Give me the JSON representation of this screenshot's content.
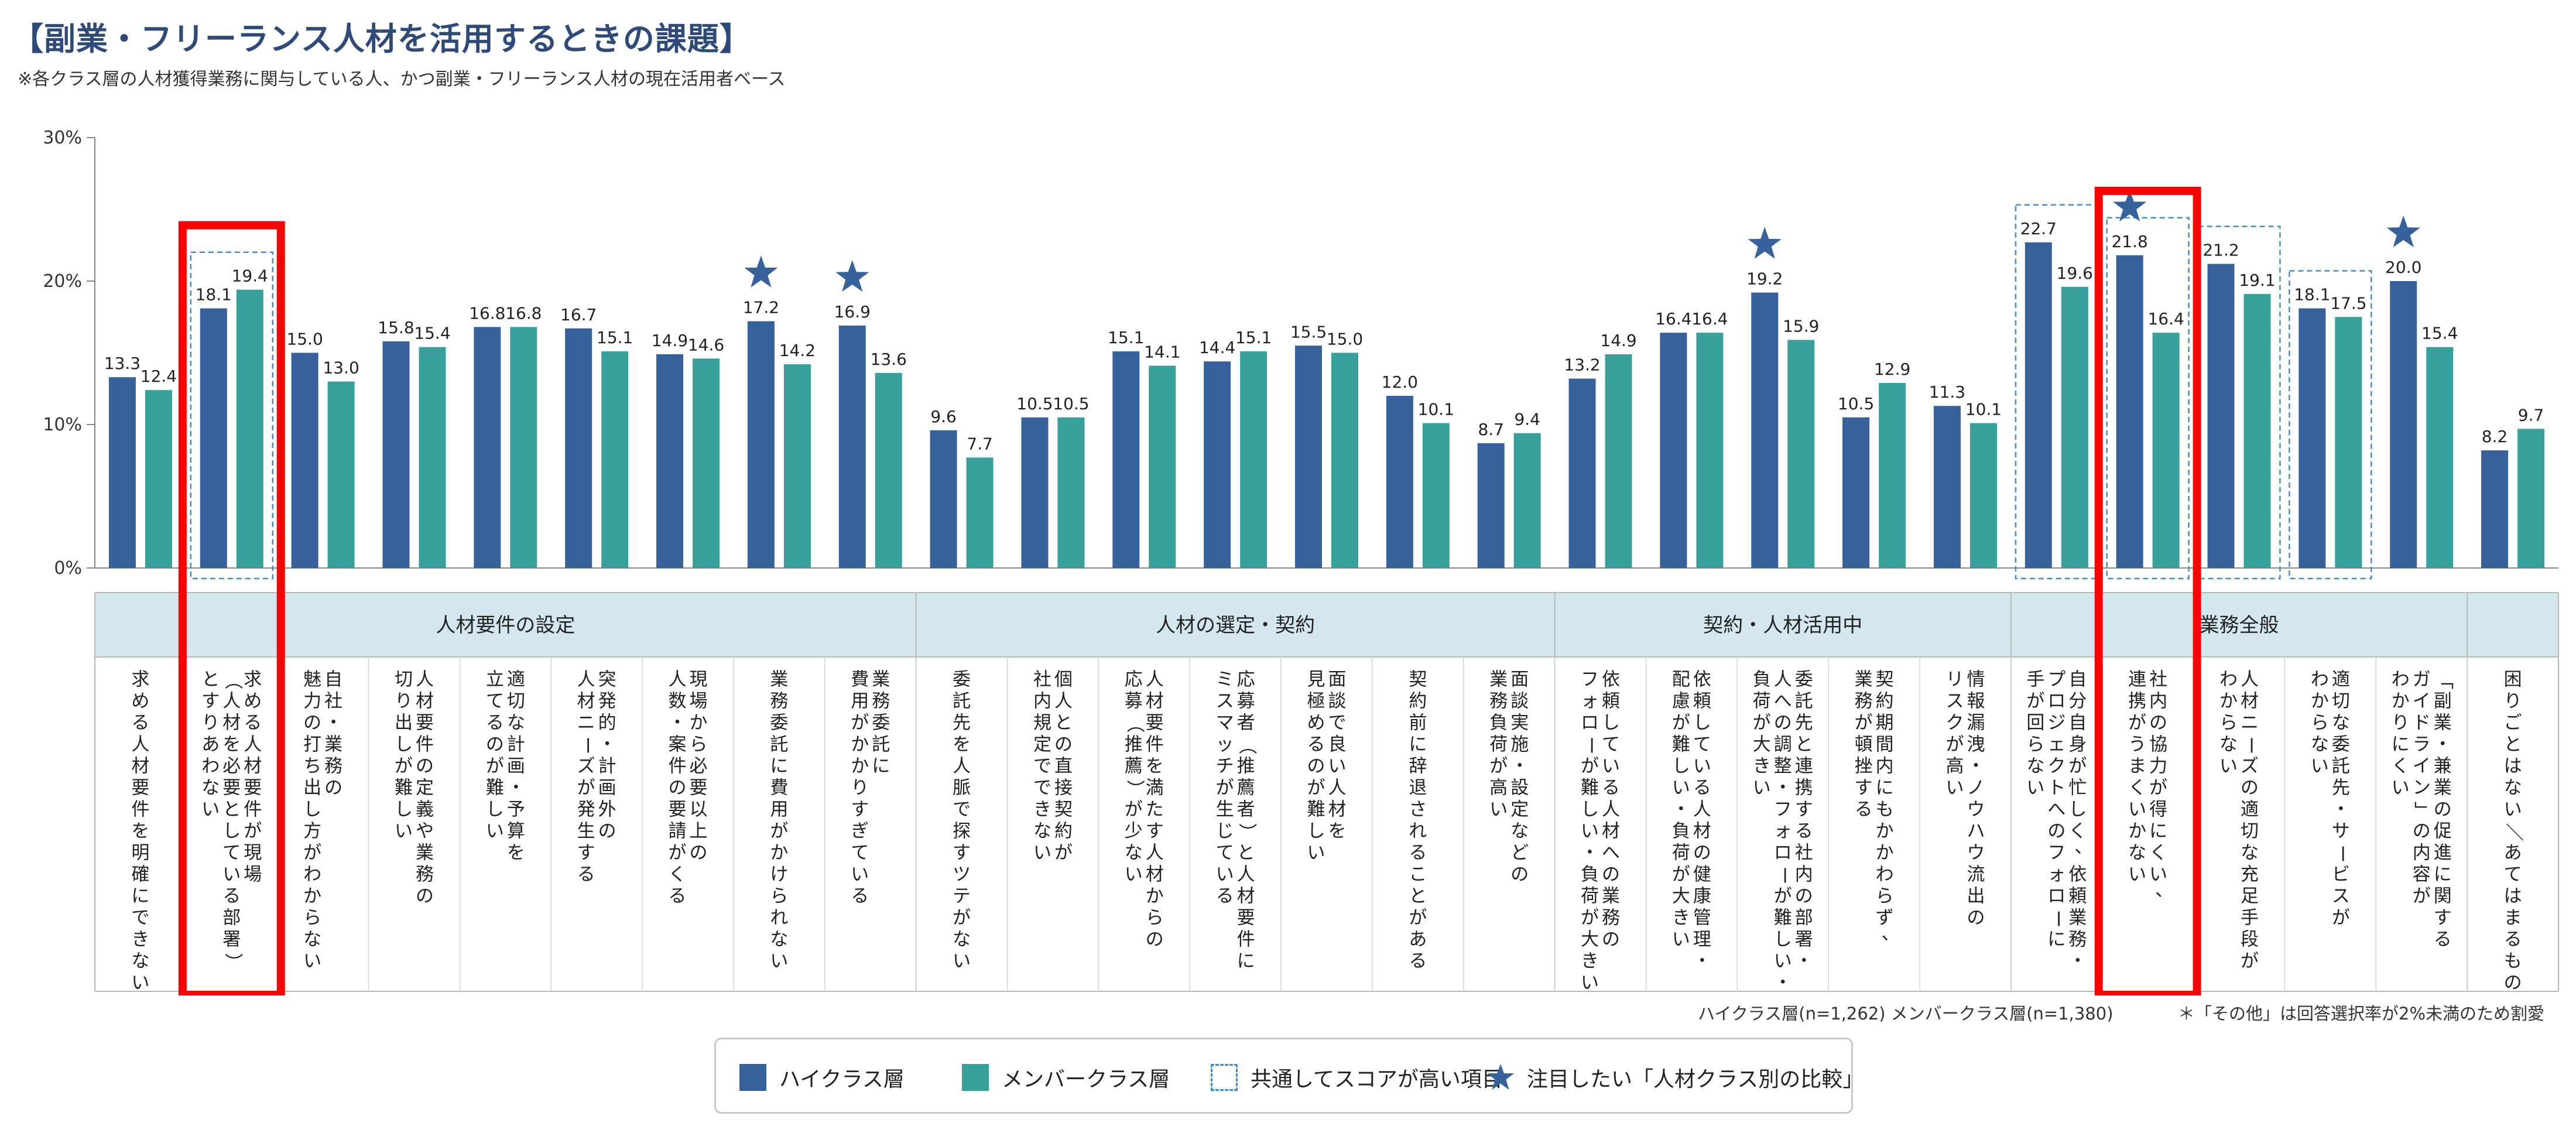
{
  "title": "【副業・フリーランス人材を活用するときの課題】",
  "subtitle": "※各クラス層の人材獲得業務に関与している人、かつ副業・フリーランス人材の現在活用者ベース",
  "colors": {
    "high": "#36619a",
    "member": "#37a09b",
    "group_bg": "#d4e6ee",
    "dashed": "#3f8fc4",
    "highlight_box": "#ff0000"
  },
  "chart_data": {
    "type": "bar",
    "ylim": [
      0,
      30
    ],
    "yticks": [
      "0%",
      "10%",
      "20%",
      "30%"
    ],
    "series": [
      {
        "name": "ハイクラス層",
        "values": [
          13.3,
          18.1,
          15.0,
          15.8,
          16.8,
          16.7,
          14.9,
          17.2,
          16.9,
          9.6,
          10.5,
          15.1,
          14.4,
          15.5,
          12.0,
          8.7,
          13.2,
          16.4,
          19.2,
          10.5,
          11.3,
          22.7,
          21.8,
          21.2,
          18.1,
          20.0,
          8.2
        ]
      },
      {
        "name": "メンバークラス層",
        "values": [
          12.4,
          19.4,
          13.0,
          15.4,
          16.8,
          15.1,
          14.6,
          14.2,
          13.6,
          7.7,
          10.5,
          14.1,
          15.1,
          15.0,
          10.1,
          9.4,
          14.9,
          16.4,
          15.9,
          12.9,
          10.1,
          19.6,
          16.4,
          19.1,
          17.5,
          15.4,
          9.7
        ]
      }
    ],
    "categories": [
      {
        "lines": [
          "求める人材要件を明確にできない"
        ]
      },
      {
        "lines": [
          "求める人材要件が現場",
          "（人材を必要としている部署）",
          "とすりあわない"
        ]
      },
      {
        "lines": [
          "自社・業務の",
          "魅力の打ち出し方がわからない"
        ]
      },
      {
        "lines": [
          "人材要件の定義や業務の",
          "切り出しが難しい"
        ]
      },
      {
        "lines": [
          "適切な計画・予算を",
          "立てるのが難しい"
        ]
      },
      {
        "lines": [
          "突発的・計画外の",
          "人材ニーズが発生する"
        ]
      },
      {
        "lines": [
          "現場から必要以上の",
          "人数・案件の要請がくる"
        ]
      },
      {
        "lines": [
          "業務委託に費用がかけられない"
        ]
      },
      {
        "lines": [
          "業務委託に",
          "費用がかかりすぎている"
        ]
      },
      {
        "lines": [
          "委託先を人脈で探すツテがない"
        ]
      },
      {
        "lines": [
          "個人との直接契約が",
          "社内規定でできない"
        ]
      },
      {
        "lines": [
          "人材要件を満たす人材からの",
          "応募（推薦）が少ない"
        ]
      },
      {
        "lines": [
          "応募者（推薦者）と人材要件に",
          "ミスマッチが生じている"
        ]
      },
      {
        "lines": [
          "面談で良い人材を",
          "見極めるのが難しい"
        ]
      },
      {
        "lines": [
          "契約前に辞退されることがある"
        ]
      },
      {
        "lines": [
          "面談実施・設定などの",
          "業務負荷が高い"
        ]
      },
      {
        "lines": [
          "依頼している人材への業務の",
          "フォローが難しい・負荷が大きい"
        ]
      },
      {
        "lines": [
          "依頼している人材の健康管理・",
          "配慮が難しい・負荷が大きい"
        ]
      },
      {
        "lines": [
          "委託先と連携する社内の部署・",
          "人への調整・フォローが難しい・",
          "負荷が大きい"
        ]
      },
      {
        "lines": [
          "契約期間内にもかかわらず、",
          "業務が頓挫する"
        ]
      },
      {
        "lines": [
          "情報漏洩・ノウハウ流出の",
          "リスクが高い"
        ]
      },
      {
        "lines": [
          "自分自身が忙しく、依頼業務・",
          "プロジェクトへのフォローに",
          "手が回らない"
        ]
      },
      {
        "lines": [
          "社内の協力が得にくい、",
          "連携がうまくいかない"
        ]
      },
      {
        "lines": [
          "人材ニーズの適切な充足手段が",
          "わからない"
        ]
      },
      {
        "lines": [
          "適切な委託先・サービスが",
          "わからない"
        ]
      },
      {
        "lines": [
          "「副業・兼業の促進に関する",
          "ガイドライン」の内容が",
          "わかりにくい"
        ]
      },
      {
        "lines": [
          "困りごとはない／あてはまるものはない"
        ]
      }
    ],
    "groups": [
      {
        "label": "人材要件の設定",
        "start": 0,
        "end": 8
      },
      {
        "label": "人材の選定・契約",
        "start": 9,
        "end": 15
      },
      {
        "label": "契約・人材活用中",
        "start": 16,
        "end": 20
      },
      {
        "label": "業務全般",
        "start": 21,
        "end": 25
      },
      {
        "label": "",
        "start": 26,
        "end": 26
      }
    ],
    "common_high_items": [
      1,
      21,
      22,
      23,
      24
    ],
    "starred_items": [
      7,
      8,
      18,
      22,
      25
    ],
    "highlighted_items": [
      1,
      22
    ],
    "legend": [
      {
        "key": "high",
        "label": "ハイクラス層"
      },
      {
        "key": "member",
        "label": "メンバークラス層"
      },
      {
        "key": "dashed",
        "label": "共通してスコアが高い項目"
      },
      {
        "key": "star",
        "label": "注目したい「人材クラス別の比較」"
      }
    ]
  },
  "sample_note": "ハイクラス層(n=1,262) メンバークラス層(n=1,380)",
  "other_note": "＊「その他」は回答選択率が2%未満のため割愛"
}
